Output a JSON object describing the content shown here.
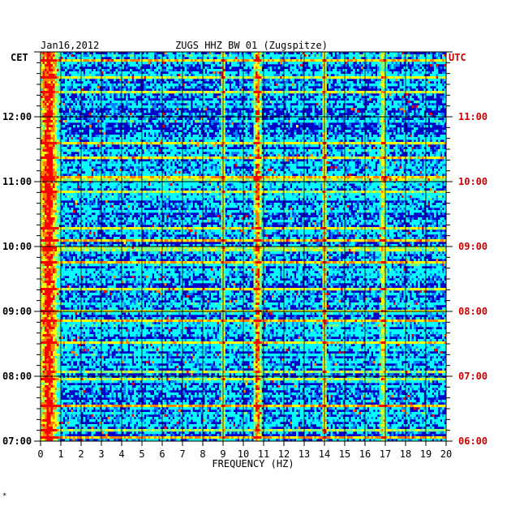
{
  "chart_data": {
    "type": "heatmap",
    "title_left": "Jan16,2012",
    "title_center": "ZUGS HHZ BW 01 (Zugspitze)",
    "left_axis_label": "CET",
    "right_axis_label": "UTC",
    "xlabel": "FREQUENCY (HZ)",
    "x_ticks": [
      "0",
      "1",
      "2",
      "3",
      "4",
      "5",
      "6",
      "7",
      "8",
      "9",
      "10",
      "11",
      "12",
      "13",
      "14",
      "15",
      "16",
      "17",
      "18",
      "19",
      "20"
    ],
    "xlim": [
      0,
      20
    ],
    "left_time_labels": [
      "12:00",
      "11:00",
      "10:00",
      "09:00",
      "08:00",
      "07:00"
    ],
    "right_time_labels": [
      "11:00",
      "10:00",
      "09:00",
      "08:00",
      "07:00",
      "06:00"
    ],
    "time_range_cet": [
      "07:00",
      "13:00"
    ],
    "grid": true,
    "colormap": [
      "#00007f",
      "#0000ff",
      "#007fff",
      "#00ffff",
      "#7fff7f",
      "#ffff00",
      "#ff7f00",
      "#ff0000"
    ],
    "background_color": "#0000c8",
    "energy_bands_hz": [
      {
        "center": 0.4,
        "width": 0.6,
        "level": 0.75
      },
      {
        "center": 9.0,
        "width": 0.15,
        "level": 0.35
      },
      {
        "center": 10.7,
        "width": 0.25,
        "level": 0.6
      },
      {
        "center": 14.0,
        "width": 0.15,
        "level": 0.45
      },
      {
        "center": 16.9,
        "width": 0.2,
        "level": 0.35
      }
    ]
  },
  "footer_mark": "*"
}
